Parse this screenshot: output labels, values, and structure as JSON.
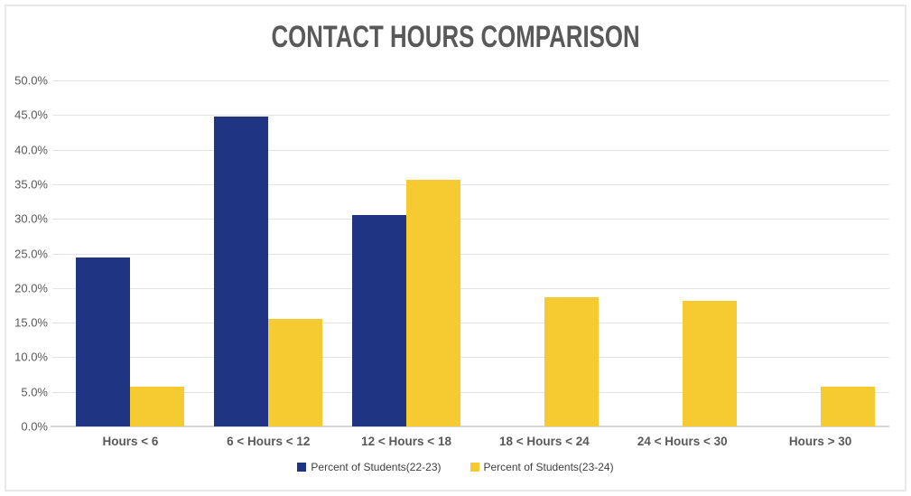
{
  "palette": {
    "background": "#FFFFFF",
    "frame_border": "#E8E8E8",
    "title_text": "#595959",
    "axis_text": "#595959",
    "gridline": "#E3E3E3",
    "axis_line": "#D6D6D6",
    "legend_text": "#3F3F3F"
  },
  "chart_data": {
    "type": "bar",
    "title": "CONTACT HOURS COMPARISON",
    "xlabel": "",
    "ylabel": "",
    "categories": [
      "Hours < 6",
      "6 < Hours < 12",
      "12 < Hours < 18",
      "18 < Hours < 24",
      "24 < Hours < 30",
      "Hours > 30"
    ],
    "series": [
      {
        "name": "Percent of Students(22-23)",
        "color": "#1F3584",
        "values": [
          24.4,
          44.8,
          30.5,
          0,
          0,
          0
        ]
      },
      {
        "name": "Percent of Students(23-24)",
        "color": "#F5CB31",
        "values": [
          5.8,
          15.5,
          35.6,
          18.7,
          18.1,
          5.8
        ]
      }
    ],
    "y_axis": {
      "min": 0,
      "max": 50,
      "tick_step": 5,
      "unit": "%",
      "tick_labels": [
        "50.0%",
        "45.0%",
        "40.0%",
        "35.0%",
        "30.0%",
        "25.0%",
        "20.0%",
        "15.0%",
        "10.0%",
        "5.0%",
        "0.0%"
      ]
    },
    "grid": true,
    "legend_position": "bottom"
  }
}
